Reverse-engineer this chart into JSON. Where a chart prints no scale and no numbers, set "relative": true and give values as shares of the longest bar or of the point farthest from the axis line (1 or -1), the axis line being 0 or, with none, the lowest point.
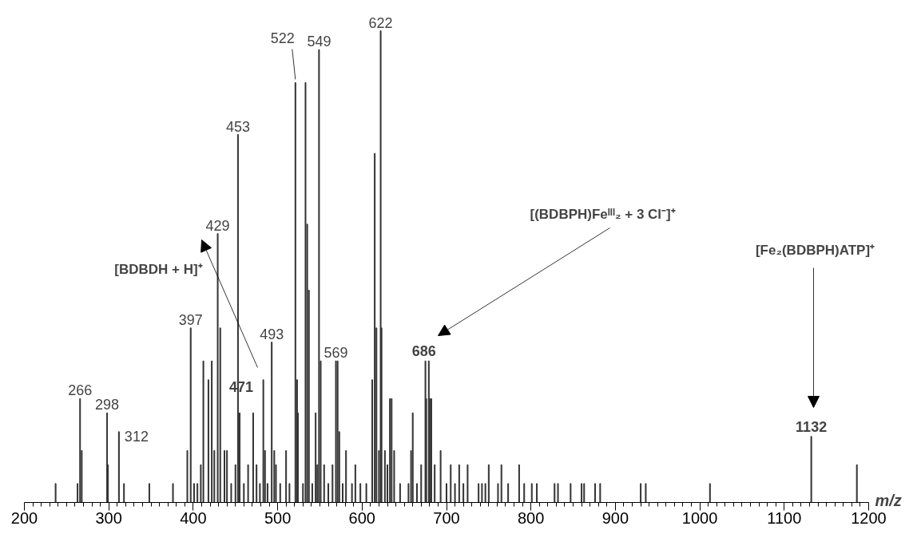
{
  "chart_data": {
    "type": "bar",
    "relative": true,
    "xlabel": "m/z",
    "color": "#333333",
    "x": [
      237,
      263,
      266,
      268,
      298,
      299,
      312,
      318,
      348,
      376,
      393,
      397,
      401,
      405,
      409,
      412,
      418,
      422,
      425,
      429,
      432,
      437,
      440,
      445,
      450,
      453,
      455,
      460,
      465,
      471,
      475,
      479,
      483,
      485,
      488,
      493,
      496,
      498,
      503,
      510,
      514,
      521,
      523,
      524,
      530,
      533,
      535,
      537,
      541,
      545,
      547,
      549,
      551,
      555,
      560,
      565,
      569,
      571,
      573,
      577,
      581,
      588,
      592,
      598,
      605,
      612,
      615,
      617,
      620,
      622,
      623,
      627,
      630,
      633,
      635,
      638,
      645,
      655,
      658,
      660,
      665,
      670,
      675,
      676,
      679,
      680,
      682,
      686,
      693,
      700,
      705,
      710,
      715,
      720,
      725,
      738,
      742,
      746,
      750,
      761,
      765,
      773,
      786,
      792,
      801,
      807,
      828,
      832,
      847,
      860,
      863,
      876,
      882,
      930,
      936,
      1012,
      1132,
      1186
    ],
    "values": [
      0.04,
      0.04,
      0.22,
      0.11,
      0.19,
      0.08,
      0.15,
      0.04,
      0.04,
      0.04,
      0.11,
      0.37,
      0.04,
      0.04,
      0.08,
      0.3,
      0.26,
      0.3,
      0.11,
      0.57,
      0.37,
      0.11,
      0.11,
      0.04,
      0.08,
      0.78,
      0.19,
      0.04,
      0.08,
      0.19,
      0.08,
      0.04,
      0.26,
      0.11,
      0.04,
      0.34,
      0.11,
      0.08,
      0.04,
      0.11,
      0.04,
      0.89,
      0.26,
      0.19,
      0.04,
      0.89,
      0.59,
      0.45,
      0.04,
      0.19,
      0.08,
      0.96,
      0.3,
      0.08,
      0.04,
      0.08,
      0.3,
      0.3,
      0.15,
      0.04,
      0.11,
      0.04,
      0.08,
      0.04,
      0.04,
      0.26,
      0.74,
      0.37,
      0.11,
      1,
      0.37,
      0.11,
      0.08,
      0.22,
      0.22,
      0.11,
      0.04,
      0.04,
      0.11,
      0.19,
      0.04,
      0.08,
      0.3,
      0.22,
      0.3,
      0.22,
      0.22,
      0.08,
      0.11,
      0.04,
      0.08,
      0.04,
      0.08,
      0.04,
      0.08,
      0.04,
      0.04,
      0.04,
      0.08,
      0.04,
      0.08,
      0.04,
      0.08,
      0.04,
      0.04,
      0.04,
      0.04,
      0.04,
      0.04,
      0.04,
      0.04,
      0.04,
      0.04,
      0.04,
      0.04,
      0.04,
      0.14,
      0.08
    ],
    "xlim": [
      200,
      1200
    ],
    "xticks": [
      200,
      300,
      400,
      500,
      600,
      700,
      800,
      900,
      1000,
      1100,
      1200
    ],
    "annotations": [
      {
        "text": "266",
        "x": 266,
        "y": 0.22
      },
      {
        "text": "298",
        "x": 298,
        "y": 0.19
      },
      {
        "text": "312",
        "x": 312,
        "y": 0.15
      },
      {
        "text": "397",
        "x": 397,
        "y": 0.37
      },
      {
        "text": "429",
        "x": 429,
        "y": 0.57
      },
      {
        "text": "453",
        "x": 453,
        "y": 0.78
      },
      {
        "text": "471",
        "x": 471,
        "y": 0.19
      },
      {
        "text": "493",
        "x": 493,
        "y": 0.34
      },
      {
        "text": "522",
        "x": 521,
        "y": 0.89
      },
      {
        "text": "549",
        "x": 549,
        "y": 0.96
      },
      {
        "text": "569",
        "x": 569,
        "y": 0.3
      },
      {
        "text": "622",
        "x": 622,
        "y": 1
      },
      {
        "text": "686",
        "x": 679,
        "y": 0.3
      },
      {
        "text": "1132",
        "x": 1132,
        "y": 0.14
      },
      "[BDBDH + H]⁺",
      "[(BDBPH)Feᴵᴵᴵ₂ + 3 Cl⁻]⁺",
      "[Fe₂(BDBPH)ATP]⁺"
    ]
  }
}
